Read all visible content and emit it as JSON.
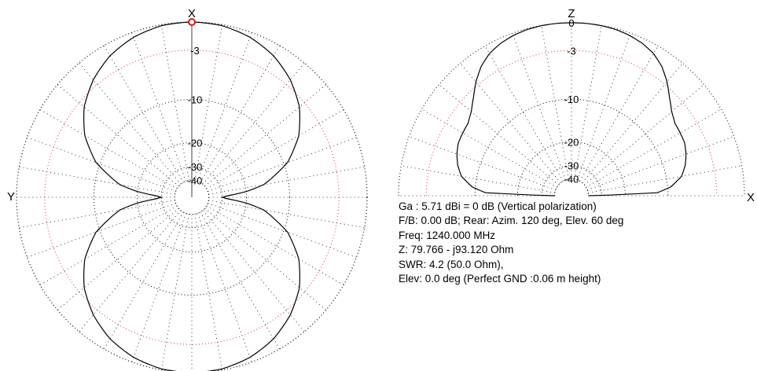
{
  "chart_data": [
    {
      "type": "polar-azimuth",
      "axis_labels": {
        "top": "X",
        "left": "Y"
      },
      "rings_db": [
        -3,
        -10,
        -20,
        -30,
        -40
      ],
      "ring_labels": [
        "-3",
        "-10",
        "-20",
        "-30",
        "-40"
      ],
      "angle_step_deg": 10,
      "pattern": {
        "description_key": "figure-eight dipole pattern, lobes toward +X and -X",
        "angles_deg": [
          0,
          10,
          20,
          30,
          40,
          50,
          60,
          70,
          80,
          84,
          88,
          90
        ],
        "gain_db": [
          0,
          -0.1,
          -0.5,
          -1.2,
          -2.3,
          -3.8,
          -6.0,
          -9.3,
          -15.0,
          -20.0,
          -28.0,
          -30.0
        ]
      },
      "max_marker_deg": 0,
      "colors": {
        "trace": "#000000",
        "grid": "#000000",
        "ref_ring": "#e03030",
        "marker": "#e01010"
      }
    },
    {
      "type": "polar-elevation",
      "axis_labels": {
        "top": "Z",
        "right": "X"
      },
      "rings_db": [
        0,
        -3,
        -10,
        -20,
        -30,
        -40
      ],
      "ring_labels": [
        "0",
        "-3",
        "-10",
        "-20",
        "-30",
        "-40"
      ],
      "angle_step_deg": 10,
      "pattern": {
        "elevation_deg": [
          0,
          2,
          5,
          10,
          15,
          20,
          25,
          30,
          35,
          40,
          45,
          50,
          55,
          60,
          65,
          70,
          75,
          80,
          85,
          90
        ],
        "gain_db": [
          -40,
          -12.0,
          -9.5,
          -7.5,
          -6.6,
          -6.0,
          -5.6,
          -5.5,
          -5.4,
          -4.8,
          -3.8,
          -2.6,
          -1.6,
          -0.9,
          -0.5,
          -0.25,
          -0.1,
          -0.03,
          0,
          0
        ]
      },
      "colors": {
        "trace": "#000000",
        "grid": "#000000",
        "ref_ring": "#e03030"
      }
    }
  ],
  "info": {
    "gain": "Ga : 5.71 dBi = 0 dB  (Vertical polarization)",
    "fb": "F/B: 0.00 dB; Rear: Azim. 120 deg,  Elev. 60 deg",
    "freq": "Freq: 1240.000 MHz",
    "impedance": "Z: 79.766 - j93.120 Ohm",
    "swr": "SWR: 4.2 (50.0 Ohm),",
    "elev": "Elev: 0.0 deg (Perfect GND  :0.06 m height)"
  }
}
